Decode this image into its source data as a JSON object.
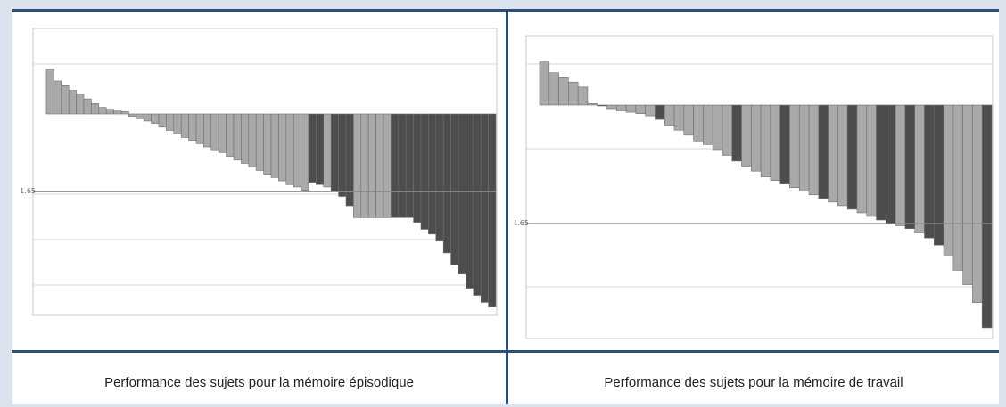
{
  "chart_data": [
    {
      "type": "bar",
      "caption": "Performance des sujets pour la mémoire épisodique",
      "threshold_label": "-1.65",
      "threshold": -1.65,
      "ylim": [
        -4.2,
        1.0
      ],
      "grid": true,
      "colors": {
        "light": "#a9a9a9",
        "dark": "#4d4d4d",
        "edge": "#6e6e6e",
        "grid": "#d6d6d6",
        "threshold": "#8a8a8a"
      },
      "series": [
        {
          "values": [
            0.95,
            0.7,
            0.6,
            0.5,
            0.42,
            0.32,
            0.22,
            0.14,
            0.1,
            0.08,
            0.05,
            -0.05,
            -0.1,
            -0.15,
            -0.2,
            -0.28,
            -0.35,
            -0.42,
            -0.5,
            -0.56,
            -0.63,
            -0.7,
            -0.76,
            -0.82,
            -0.9,
            -0.98,
            -1.05,
            -1.12,
            -1.2,
            -1.28,
            -1.35,
            -1.42,
            -1.5,
            -1.55,
            -1.62,
            -1.45,
            -1.5,
            -1.55,
            -1.65,
            -1.75,
            -1.95,
            -2.2,
            -2.2,
            -2.2,
            -2.2,
            -2.2,
            -2.2,
            -2.2,
            -2.2,
            -2.3,
            -2.45,
            -2.55,
            -2.7,
            -2.95,
            -3.2,
            -3.4,
            -3.7,
            -3.85,
            -4.0,
            -4.1
          ],
          "shades": [
            "light",
            "light",
            "light",
            "light",
            "light",
            "light",
            "light",
            "light",
            "light",
            "light",
            "light",
            "light",
            "light",
            "light",
            "light",
            "light",
            "light",
            "light",
            "light",
            "light",
            "light",
            "light",
            "light",
            "light",
            "light",
            "light",
            "light",
            "light",
            "light",
            "light",
            "light",
            "light",
            "light",
            "light",
            "light",
            "dark",
            "dark",
            "light",
            "dark",
            "dark",
            "dark",
            "light",
            "light",
            "light",
            "light",
            "light",
            "dark",
            "dark",
            "dark",
            "dark",
            "dark",
            "dark",
            "dark",
            "dark",
            "dark",
            "dark",
            "dark",
            "dark",
            "dark",
            "dark"
          ]
        }
      ]
    },
    {
      "type": "bar",
      "caption": "Performance des sujets pour la mémoire de travail",
      "threshold_label": "-1.65",
      "threshold": -1.65,
      "ylim": [
        -3.2,
        0.7
      ],
      "grid": true,
      "colors": {
        "light": "#a9a9a9",
        "dark": "#4d4d4d",
        "edge": "#6e6e6e",
        "grid": "#d6d6d6",
        "threshold": "#8a8a8a"
      },
      "series": [
        {
          "values": [
            0.6,
            0.45,
            0.38,
            0.32,
            0.25,
            0.02,
            0,
            -0.05,
            -0.08,
            -0.1,
            -0.12,
            -0.15,
            -0.2,
            -0.28,
            -0.35,
            -0.42,
            -0.5,
            -0.55,
            -0.62,
            -0.7,
            -0.78,
            -0.85,
            -0.92,
            -1.0,
            -1.05,
            -1.1,
            -1.15,
            -1.2,
            -1.25,
            -1.3,
            -1.35,
            -1.4,
            -1.45,
            -1.5,
            -1.55,
            -1.6,
            -1.65,
            -1.68,
            -1.72,
            -1.78,
            -1.85,
            -1.95,
            -2.1,
            -2.3,
            -2.5,
            -2.75,
            -3.1
          ],
          "shades": [
            "light",
            "light",
            "light",
            "light",
            "light",
            "light",
            "dark",
            "light",
            "light",
            "light",
            "light",
            "light",
            "dark",
            "light",
            "light",
            "light",
            "light",
            "light",
            "light",
            "light",
            "dark",
            "light",
            "light",
            "light",
            "light",
            "dark",
            "light",
            "light",
            "light",
            "dark",
            "light",
            "light",
            "dark",
            "light",
            "light",
            "dark",
            "dark",
            "light",
            "dark",
            "light",
            "dark",
            "dark",
            "light",
            "light",
            "light",
            "light",
            "dark"
          ]
        }
      ]
    }
  ]
}
